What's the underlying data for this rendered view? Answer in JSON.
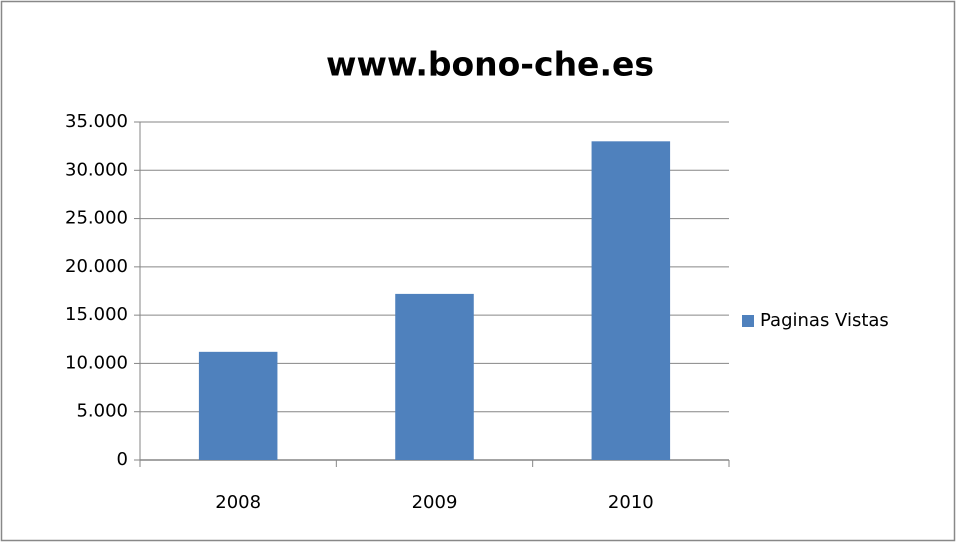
{
  "chart_data": {
    "type": "bar",
    "title": "www.bono-che.es",
    "categories": [
      "2008",
      "2009",
      "2010"
    ],
    "series": [
      {
        "name": "Paginas Vistas",
        "color": "#4f81bd",
        "values": [
          11200,
          17200,
          33000
        ]
      }
    ],
    "ylim": [
      0,
      35000
    ],
    "yticks": [
      0,
      {
        "value": 5000,
        "label": "5.000"
      },
      {
        "value": 10000,
        "label": "10.000"
      },
      {
        "value": 15000,
        "label": "15.000"
      },
      {
        "value": 20000,
        "label": "20.000"
      },
      {
        "value": 25000,
        "label": "25.000"
      },
      {
        "value": 30000,
        "label": "30.000"
      },
      {
        "value": 35000,
        "label": "35.000"
      }
    ],
    "grid": true,
    "legend": "right"
  }
}
